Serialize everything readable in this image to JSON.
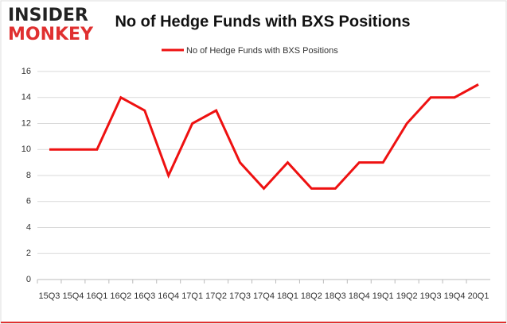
{
  "logo": {
    "top": "INSIDER",
    "bottom": "MONKEY"
  },
  "chart_data": {
    "type": "line",
    "title": "No of Hedge Funds with BXS Positions",
    "categories": [
      "15Q3",
      "15Q4",
      "16Q1",
      "16Q2",
      "16Q3",
      "16Q4",
      "17Q1",
      "17Q2",
      "17Q3",
      "17Q4",
      "18Q1",
      "18Q2",
      "18Q3",
      "18Q4",
      "19Q1",
      "19Q2",
      "19Q3",
      "19Q4",
      "20Q1"
    ],
    "series": [
      {
        "name": "No of Hedge Funds with BXS Positions",
        "color": "#ee1111",
        "values": [
          10,
          10,
          10,
          14,
          13,
          8,
          12,
          13,
          9,
          7,
          9,
          7,
          7,
          9,
          9,
          12,
          14,
          14,
          15
        ]
      }
    ],
    "ylim": [
      0,
      16
    ],
    "yticks": [
      0,
      2,
      4,
      6,
      8,
      10,
      12,
      14,
      16
    ],
    "grid": true,
    "legend": "top"
  }
}
